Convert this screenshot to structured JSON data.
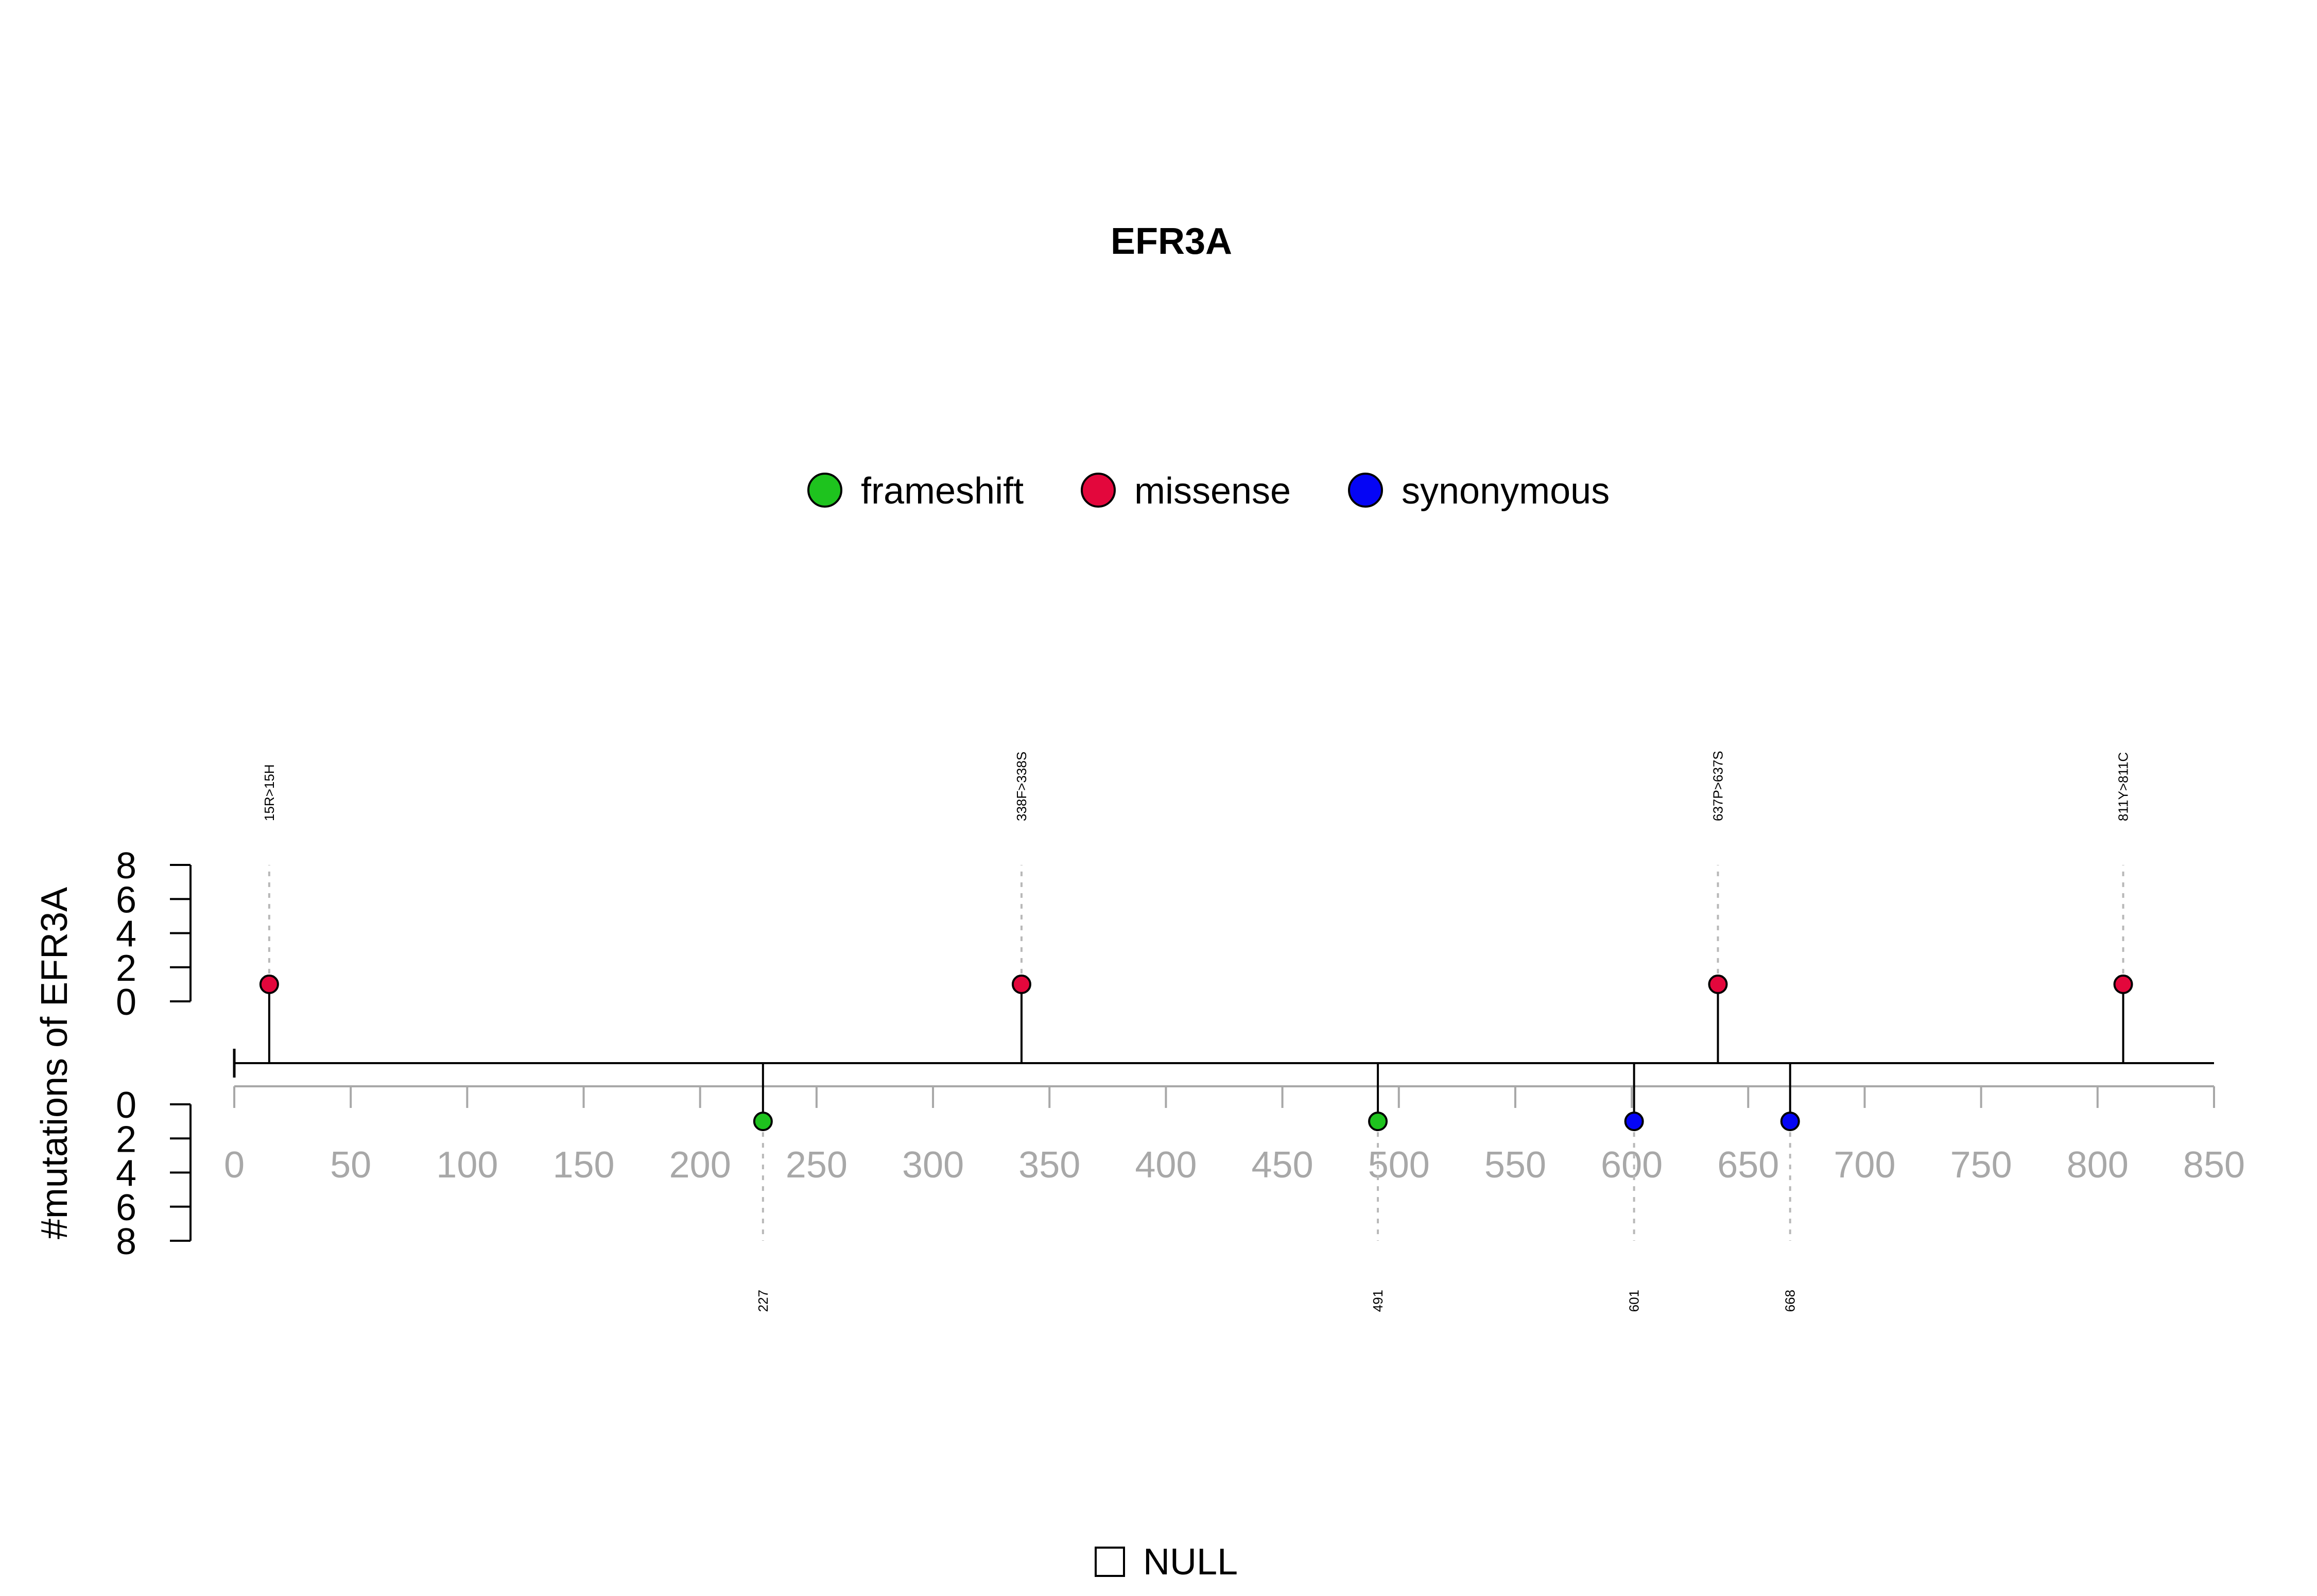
{
  "chart_data": {
    "type": "lollipop",
    "title": "EFR3A",
    "ylabel": "#mutations of EFR3A",
    "xlim": [
      0,
      850
    ],
    "x_ticks": [
      0,
      50,
      100,
      150,
      200,
      250,
      300,
      350,
      400,
      450,
      500,
      550,
      600,
      650,
      700,
      750,
      800,
      850
    ],
    "y_ticks": [
      0,
      2,
      4,
      6,
      8
    ],
    "ylim": [
      0,
      8
    ],
    "legend": {
      "position": "top",
      "items": [
        {
          "name": "frameshift",
          "color": "#1ec31e"
        },
        {
          "name": "missense",
          "color": "#e3073c"
        },
        {
          "name": "synonymous",
          "color": "#0505f5"
        }
      ]
    },
    "mutations": [
      {
        "position": 15,
        "count": 1,
        "type": "missense",
        "side": "top",
        "label": "15R>15H"
      },
      {
        "position": 338,
        "count": 1,
        "type": "missense",
        "side": "top",
        "label": "338F>338S"
      },
      {
        "position": 637,
        "count": 1,
        "type": "missense",
        "side": "top",
        "label": "637P>637S"
      },
      {
        "position": 811,
        "count": 1,
        "type": "missense",
        "side": "top",
        "label": "811Y>811C"
      },
      {
        "position": 227,
        "count": 1,
        "type": "frameshift",
        "side": "bottom",
        "label": "227"
      },
      {
        "position": 491,
        "count": 1,
        "type": "frameshift",
        "side": "bottom",
        "label": "491"
      },
      {
        "position": 601,
        "count": 1,
        "type": "synonymous",
        "side": "bottom",
        "label": "601"
      },
      {
        "position": 668,
        "count": 1,
        "type": "synonymous",
        "side": "bottom",
        "label": "668"
      }
    ],
    "bottom_legend": {
      "label": "NULL"
    }
  }
}
